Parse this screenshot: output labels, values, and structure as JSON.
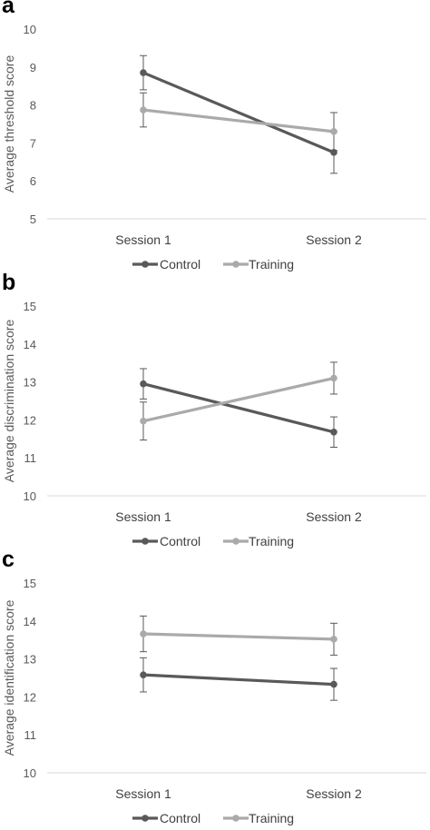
{
  "chart_data": [
    {
      "panel": "a",
      "type": "line",
      "ylabel": "Average threshold score",
      "ylim": [
        5,
        10
      ],
      "yticks": [
        5,
        6,
        7,
        8,
        9,
        10
      ],
      "categories": [
        "Session 1",
        "Session 2"
      ],
      "series": [
        {
          "name": "Control",
          "color": "#595959",
          "values": [
            8.85,
            6.75
          ],
          "err": [
            0.45,
            0.55
          ]
        },
        {
          "name": "Training",
          "color": "#aaaaaa",
          "values": [
            7.87,
            7.3
          ],
          "err": [
            0.45,
            0.5
          ]
        }
      ],
      "legend_position": "bottom",
      "grid": false
    },
    {
      "panel": "b",
      "type": "line",
      "ylabel": "Average discrimination score",
      "ylim": [
        10,
        15
      ],
      "yticks": [
        10,
        11,
        12,
        13,
        14,
        15
      ],
      "categories": [
        "Session 1",
        "Session 2"
      ],
      "series": [
        {
          "name": "Control",
          "color": "#595959",
          "values": [
            12.95,
            11.68
          ],
          "err": [
            0.4,
            0.4
          ]
        },
        {
          "name": "Training",
          "color": "#aaaaaa",
          "values": [
            11.97,
            13.1
          ],
          "err": [
            0.5,
            0.42
          ]
        }
      ],
      "legend_position": "bottom",
      "grid": false
    },
    {
      "panel": "c",
      "type": "line",
      "ylabel": "Average identification score",
      "ylim": [
        10,
        15
      ],
      "yticks": [
        10,
        11,
        12,
        13,
        14,
        15
      ],
      "categories": [
        "Session 1",
        "Session 2"
      ],
      "series": [
        {
          "name": "Control",
          "color": "#595959",
          "values": [
            12.58,
            12.33
          ],
          "err": [
            0.45,
            0.42
          ]
        },
        {
          "name": "Training",
          "color": "#aaaaaa",
          "values": [
            13.66,
            13.52
          ],
          "err": [
            0.47,
            0.42
          ]
        }
      ],
      "legend_position": "bottom",
      "grid": false
    }
  ],
  "panels": [
    {
      "letter": "a"
    },
    {
      "letter": "b"
    },
    {
      "letter": "c"
    }
  ]
}
